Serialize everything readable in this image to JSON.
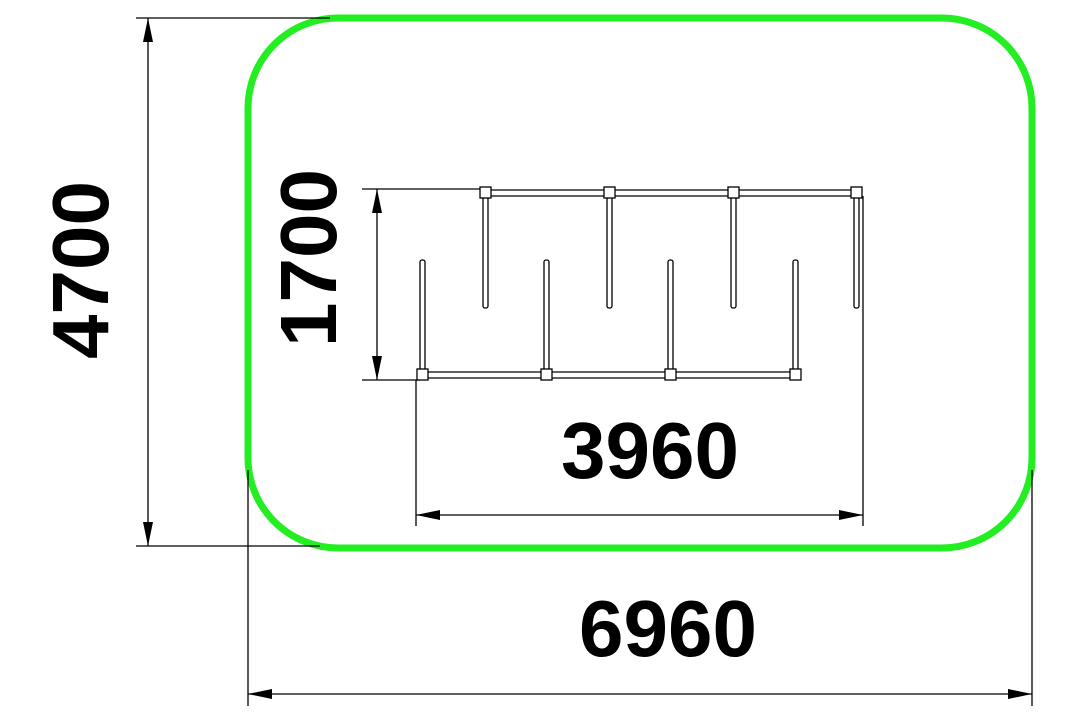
{
  "dimensions": {
    "overall_height": "4700",
    "overall_width": "6960",
    "equipment_height": "1700",
    "equipment_width": "3960"
  },
  "colors": {
    "boundary": "#22ee22",
    "lines": "#000000",
    "background": "#ffffff"
  }
}
